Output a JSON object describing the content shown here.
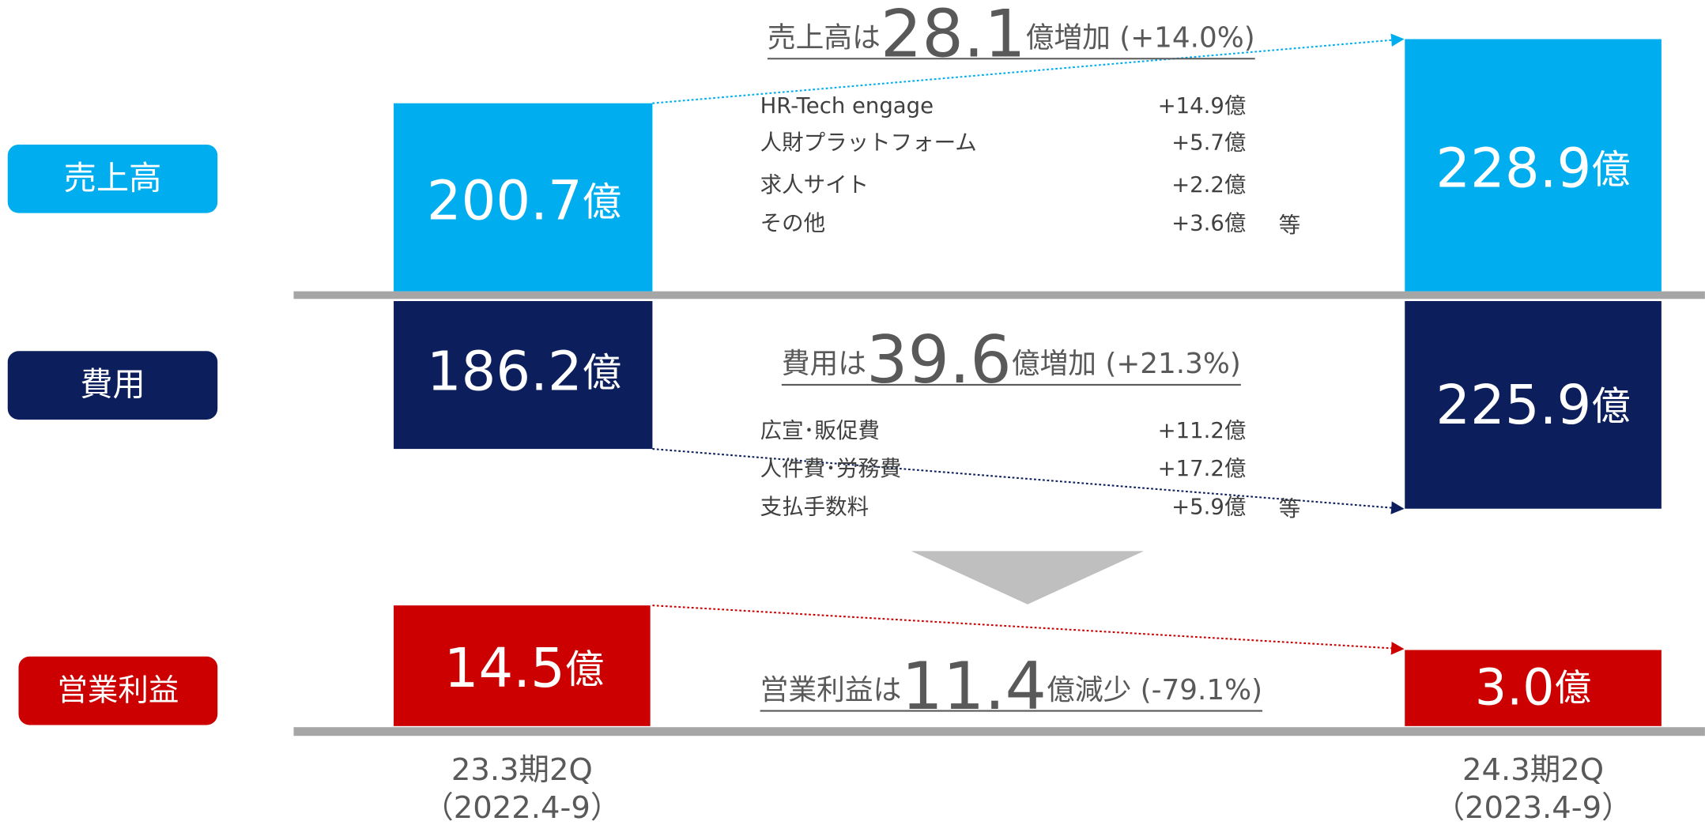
{
  "rows": [
    {
      "label": "売上高",
      "before": "200.7",
      "after": "228.9",
      "unit": "億",
      "headline": {
        "pre": "売上高は",
        "num": "28.1",
        "post": "億増加 (+14.0%)"
      },
      "items": [
        {
          "name": "HR-Tech engage",
          "value": "+14.9億"
        },
        {
          "name": "人財プラットフォーム",
          "value": "+5.7億"
        },
        {
          "name": "求人サイト",
          "value": "+2.2億"
        },
        {
          "name": "その他",
          "value": "+3.6億"
        }
      ],
      "etc": "等"
    },
    {
      "label": "費用",
      "before": "186.2",
      "after": "225.9",
      "unit": "億",
      "headline": {
        "pre": "費用は",
        "num": "39.6",
        "post": "億増加 (+21.3%)"
      },
      "items": [
        {
          "name": "広宣･販促費",
          "value": "+11.2億"
        },
        {
          "name": "人件費･労務費",
          "value": "+17.2億"
        },
        {
          "name": "支払手数料",
          "value": "+5.9億"
        }
      ],
      "etc": "等"
    },
    {
      "label": "営業利益",
      "before": "14.5",
      "after": "3.0",
      "unit": "億",
      "headline": {
        "pre": "営業利益は",
        "num": "11.4",
        "post": "億減少 (-79.1%)"
      }
    }
  ],
  "periods": [
    {
      "name": "23.3期2Q",
      "range": "（2022.4-9）"
    },
    {
      "name": "24.3期2Q",
      "range": "（2023.4-9）"
    }
  ]
}
